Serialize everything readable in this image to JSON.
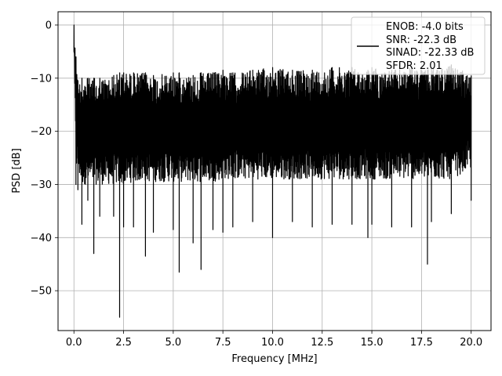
{
  "chart_data": {
    "type": "line",
    "title": "",
    "xlabel": "Frequency [MHz]",
    "ylabel": "PSD [dB]",
    "xlim": [
      -0.8,
      21.0
    ],
    "ylim": [
      -57.5,
      2.5
    ],
    "grid": true,
    "x_ticks": [
      0.0,
      2.5,
      5.0,
      7.5,
      10.0,
      12.5,
      15.0,
      17.5,
      20.0
    ],
    "x_tick_labels": [
      "0.0",
      "2.5",
      "5.0",
      "7.5",
      "10.0",
      "12.5",
      "15.0",
      "17.5",
      "20.0"
    ],
    "y_ticks": [
      0,
      -10,
      -20,
      -30,
      -40,
      -50
    ],
    "y_tick_labels": [
      "0",
      "−10",
      "−20",
      "−30",
      "−40",
      "−50"
    ],
    "legend_position": "top-right",
    "legend_lines": [
      "ENOB: -4.0 bits",
      "SNR: -22.3 dB",
      "SINAD: -22.33 dB",
      "SFDR: 2.01"
    ],
    "series_color": "#000000",
    "series": [
      {
        "x": [
          0.0,
          0.1,
          0.2,
          0.4,
          0.7,
          1.0,
          1.3,
          2.0,
          2.3,
          2.5,
          3.0,
          3.6,
          4.0,
          5.0,
          5.3,
          6.0,
          6.4,
          7.0,
          7.5,
          8.0,
          9.0,
          10.0,
          11.0,
          12.0,
          13.0,
          14.0,
          14.8,
          15.0,
          16.0,
          17.0,
          17.8,
          18.0,
          19.0,
          20.0
        ],
        "upper": [
          0.0,
          -6.0,
          -10.5,
          -10.0,
          -10.0,
          -10.0,
          -10.0,
          -9.5,
          -9.0,
          -9.0,
          -9.0,
          -9.0,
          -9.5,
          -9.0,
          -9.0,
          -9.5,
          -9.0,
          -9.0,
          -8.5,
          -9.0,
          -8.5,
          -8.0,
          -8.5,
          -8.5,
          -8.0,
          -8.0,
          -8.5,
          -8.0,
          -8.5,
          -8.0,
          -8.5,
          -8.0,
          -7.5,
          -9.5
        ],
        "lower": [
          -5.0,
          -30.0,
          -31.0,
          -37.5,
          -33.0,
          -43.0,
          -36.0,
          -36.0,
          -55.0,
          -38.0,
          -38.0,
          -43.5,
          -39.0,
          -38.5,
          -46.5,
          -41.0,
          -46.0,
          -38.5,
          -39.0,
          -38.0,
          -37.0,
          -40.0,
          -37.0,
          -38.0,
          -37.5,
          -37.5,
          -40.0,
          -37.5,
          -38.0,
          -38.0,
          -45.0,
          -37.0,
          -35.5,
          -33.0
        ],
        "typical_low": [
          -5.0,
          -27.0,
          -28.0,
          -30.0,
          -30.0,
          -30.0,
          -30.0,
          -30.0,
          -30.0,
          -30.0,
          -29.5,
          -29.5,
          -29.5,
          -29.5,
          -29.5,
          -29.5,
          -29.5,
          -29.5,
          -29.0,
          -29.0,
          -29.0,
          -29.0,
          -29.0,
          -29.0,
          -29.0,
          -29.0,
          -29.0,
          -29.0,
          -29.0,
          -29.0,
          -29.0,
          -29.0,
          -29.0,
          -27.0
        ]
      }
    ]
  }
}
